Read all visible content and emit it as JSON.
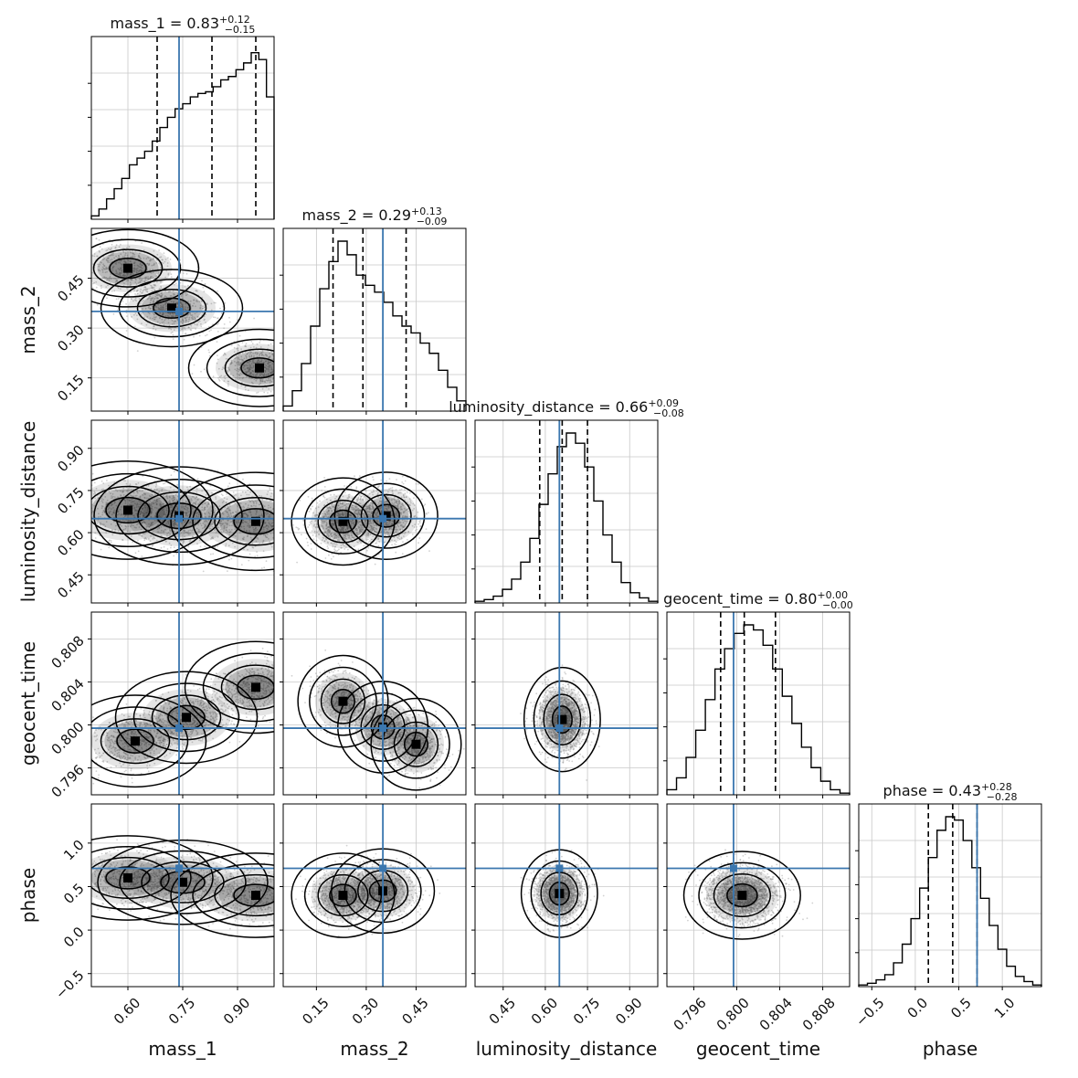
{
  "chart_data": {
    "type": "corner",
    "grid": true,
    "colors": {
      "truth": "#3b77af",
      "hist": "#000000",
      "density": "#000000",
      "grid": "#c8c8c8",
      "points": "#9a9a9a"
    },
    "parameters": [
      {
        "name": "mass_1",
        "xlabel": "mass_1",
        "ylabel": "",
        "range": [
          0.5,
          1.0
        ],
        "ticks": [
          0.6,
          0.75,
          0.9
        ],
        "tick_labels": [
          "0.60",
          "0.75",
          "0.90"
        ],
        "title_main": "mass_1 = 0.83",
        "title_sup": "+0.12",
        "title_sub": "−0.15",
        "quantiles": [
          0.68,
          0.83,
          0.95
        ],
        "truth": 0.74
      },
      {
        "name": "mass_2",
        "xlabel": "mass_2",
        "ylabel": "mass_2",
        "range": [
          0.05,
          0.6
        ],
        "ticks": [
          0.15,
          0.3,
          0.45
        ],
        "tick_labels": [
          "0.15",
          "0.30",
          "0.45"
        ],
        "title_main": "mass_2 = 0.29",
        "title_sup": "+0.13",
        "title_sub": "−0.09",
        "quantiles": [
          0.2,
          0.29,
          0.42
        ],
        "truth": 0.35
      },
      {
        "name": "luminosity_distance",
        "xlabel": "luminosity_distance",
        "ylabel": "luminosity_distance",
        "range": [
          0.35,
          1.0
        ],
        "ticks": [
          0.45,
          0.6,
          0.75,
          0.9
        ],
        "tick_labels": [
          "0.45",
          "0.60",
          "0.75",
          "0.90"
        ],
        "title_main": "luminosity_distance = 0.66",
        "title_sup": "+0.09",
        "title_sub": "−0.08",
        "quantiles": [
          0.58,
          0.66,
          0.75
        ],
        "truth": 0.65
      },
      {
        "name": "geocent_time",
        "xlabel": "geocent_time",
        "ylabel": "geocent_time",
        "range": [
          0.7935,
          0.8105
        ],
        "ticks": [
          0.796,
          0.8,
          0.804,
          0.808
        ],
        "tick_labels": [
          "0.796",
          "0.800",
          "0.804",
          "0.808"
        ],
        "title_main": "geocent_time = 0.80",
        "title_sup": "+0.00",
        "title_sub": "−0.00",
        "quantiles": [
          0.7985,
          0.8007,
          0.8036
        ],
        "truth": 0.7997
      },
      {
        "name": "phase",
        "xlabel": "phase",
        "ylabel": "phase",
        "range": [
          -0.65,
          1.45
        ],
        "ticks": [
          -0.5,
          0.0,
          0.5,
          1.0
        ],
        "tick_labels": [
          "−0.5",
          "0.0",
          "0.5",
          "1.0"
        ],
        "title_main": "phase = 0.43",
        "title_sup": "+0.28",
        "title_sub": "−0.28",
        "quantiles": [
          0.15,
          0.43,
          0.71
        ],
        "truth": 0.71
      }
    ],
    "histograms": [
      {
        "param": "mass_1",
        "edges_range": [
          0.5,
          1.0
        ],
        "counts": [
          0.02,
          0.06,
          0.12,
          0.18,
          0.24,
          0.32,
          0.36,
          0.4,
          0.46,
          0.54,
          0.6,
          0.65,
          0.68,
          0.72,
          0.74,
          0.75,
          0.78,
          0.82,
          0.84,
          0.88,
          0.92,
          0.98,
          0.94,
          0.72
        ]
      },
      {
        "param": "mass_2",
        "edges_range": [
          0.05,
          0.6
        ],
        "counts": [
          0.03,
          0.12,
          0.28,
          0.5,
          0.72,
          0.88,
          1.0,
          0.92,
          0.8,
          0.74,
          0.7,
          0.64,
          0.56,
          0.5,
          0.46,
          0.4,
          0.34,
          0.24,
          0.14,
          0.06
        ]
      },
      {
        "param": "luminosity_distance",
        "edges_range": [
          0.35,
          1.0
        ],
        "counts": [
          0.01,
          0.02,
          0.04,
          0.08,
          0.14,
          0.24,
          0.38,
          0.58,
          0.76,
          0.92,
          1.0,
          0.94,
          0.8,
          0.6,
          0.4,
          0.24,
          0.12,
          0.06,
          0.03,
          0.01
        ]
      },
      {
        "param": "geocent_time",
        "edges_range": [
          0.7935,
          0.8105
        ],
        "counts": [
          0.03,
          0.1,
          0.22,
          0.38,
          0.56,
          0.74,
          0.86,
          0.95,
          1.0,
          0.97,
          0.88,
          0.74,
          0.58,
          0.42,
          0.28,
          0.16,
          0.08,
          0.03,
          0.01
        ]
      },
      {
        "param": "phase",
        "edges_range": [
          -0.65,
          1.45
        ],
        "counts": [
          0.01,
          0.02,
          0.04,
          0.07,
          0.14,
          0.25,
          0.4,
          0.58,
          0.76,
          0.92,
          1.0,
          0.98,
          0.86,
          0.7,
          0.52,
          0.36,
          0.22,
          0.12,
          0.06,
          0.03,
          0.01
        ]
      }
    ],
    "pairs": [
      {
        "x": "mass_1",
        "y": "mass_2",
        "modes": [
          [
            0.96,
            0.18
          ],
          [
            0.72,
            0.36
          ],
          [
            0.6,
            0.48
          ]
        ],
        "spread": [
          0.1,
          0.06
        ],
        "corr": -0.95
      },
      {
        "x": "mass_1",
        "y": "luminosity_distance",
        "modes": [
          [
            0.95,
            0.64
          ],
          [
            0.74,
            0.66
          ],
          [
            0.6,
            0.68
          ]
        ],
        "spread": [
          0.12,
          0.09
        ],
        "corr": -0.2
      },
      {
        "x": "mass_2",
        "y": "luminosity_distance",
        "modes": [
          [
            0.23,
            0.64
          ],
          [
            0.36,
            0.66
          ]
        ],
        "spread": [
          0.08,
          0.08
        ],
        "corr": 0.3
      },
      {
        "x": "mass_1",
        "y": "geocent_time",
        "modes": [
          [
            0.95,
            0.8035
          ],
          [
            0.76,
            0.8007
          ],
          [
            0.62,
            0.7985
          ]
        ],
        "spread": [
          0.1,
          0.0022
        ],
        "corr": 0.95
      },
      {
        "x": "mass_2",
        "y": "geocent_time",
        "modes": [
          [
            0.23,
            0.8022
          ],
          [
            0.35,
            0.7998
          ],
          [
            0.45,
            0.7982
          ]
        ],
        "spread": [
          0.07,
          0.0022
        ],
        "corr": -0.9
      },
      {
        "x": "luminosity_distance",
        "y": "geocent_time",
        "modes": [
          [
            0.66,
            0.8005
          ]
        ],
        "spread": [
          0.07,
          0.0025
        ],
        "corr": -0.2
      },
      {
        "x": "mass_1",
        "y": "phase",
        "modes": [
          [
            0.95,
            0.4
          ],
          [
            0.75,
            0.55
          ],
          [
            0.6,
            0.6
          ]
        ],
        "spread": [
          0.12,
          0.25
        ],
        "corr": -0.1
      },
      {
        "x": "mass_2",
        "y": "phase",
        "modes": [
          [
            0.23,
            0.4
          ],
          [
            0.35,
            0.45
          ]
        ],
        "spread": [
          0.08,
          0.25
        ],
        "corr": 0.0
      },
      {
        "x": "luminosity_distance",
        "y": "phase",
        "modes": [
          [
            0.65,
            0.42
          ]
        ],
        "spread": [
          0.07,
          0.26
        ],
        "corr": 0.0
      },
      {
        "x": "geocent_time",
        "y": "phase",
        "modes": [
          [
            0.8005,
            0.4
          ]
        ],
        "spread": [
          0.0028,
          0.26
        ],
        "corr": -0.2
      }
    ]
  }
}
